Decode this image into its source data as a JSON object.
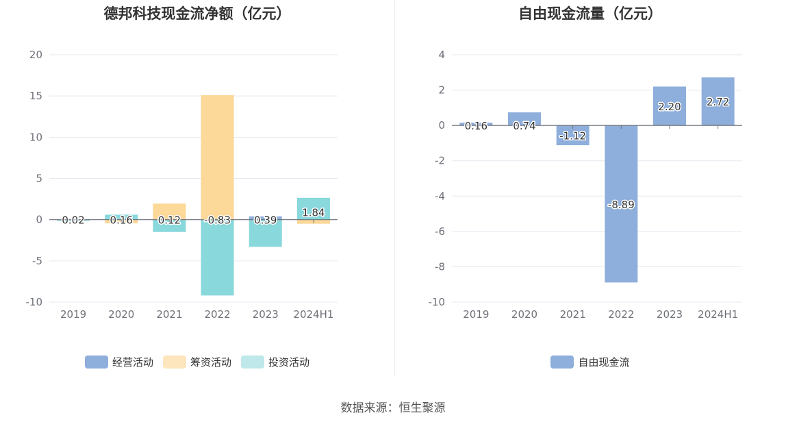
{
  "source_label": "数据来源：恒生聚源",
  "chart_data": [
    {
      "type": "bar",
      "title": "德邦科技现金流净额（亿元）",
      "categories": [
        "2019",
        "2020",
        "2021",
        "2022",
        "2023",
        "2024H1"
      ],
      "ylim": [
        -10,
        20
      ],
      "yticks": [
        20,
        15,
        10,
        5,
        0,
        -5,
        -10
      ],
      "grid": true,
      "legend_position": "bottom",
      "series": [
        {
          "name": "经营活动",
          "color": "#8eaedb",
          "values": [
            0.02,
            0.16,
            0.12,
            -0.83,
            0.39,
            1.84
          ],
          "labels": [
            "0.02",
            "0.16",
            "0.12",
            "-0.83",
            "0.39",
            "1.84"
          ]
        },
        {
          "name": "筹资活动",
          "color": "#fcd899",
          "values": [
            -0.1,
            -0.45,
            1.95,
            15.1,
            -0.2,
            -0.5
          ]
        },
        {
          "name": "投资活动",
          "color": "#88d8dc",
          "values": [
            -0.15,
            0.6,
            -1.5,
            -9.2,
            -3.3,
            2.65
          ]
        }
      ],
      "legend_colors": [
        "#8eaedb",
        "#fde5bd",
        "#bfe8ea"
      ]
    },
    {
      "type": "bar",
      "title": "自由现金流量（亿元）",
      "categories": [
        "2019",
        "2020",
        "2021",
        "2022",
        "2023",
        "2024H1"
      ],
      "ylim": [
        -10,
        4
      ],
      "yticks": [
        4,
        2,
        0,
        -2,
        -4,
        -6,
        -8,
        -10
      ],
      "grid": true,
      "legend_position": "bottom",
      "series": [
        {
          "name": "自由现金流",
          "color": "#8eaedb",
          "values": [
            0.16,
            0.74,
            -1.12,
            -8.89,
            2.2,
            2.72
          ],
          "labels": [
            "0.16",
            "0.74",
            "-1.12",
            "-8.89",
            "2.20",
            "2.72"
          ]
        }
      ],
      "legend_colors": [
        "#8eaedb"
      ]
    }
  ]
}
